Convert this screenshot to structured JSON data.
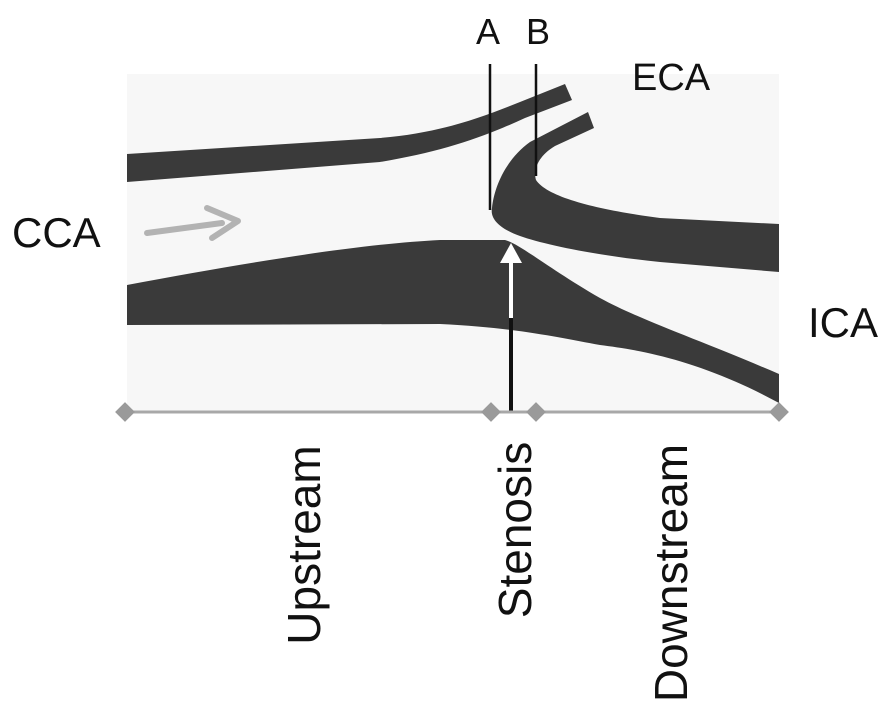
{
  "labels": {
    "line_a": "A",
    "line_b": "B",
    "eca": "ECA",
    "cca": "CCA",
    "ica": "ICA"
  },
  "regions": {
    "upstream": "Upstream",
    "stenosis": "Stenosis",
    "downstream": "Downstream"
  },
  "colors": {
    "vessel_wall": "#3a3a3a",
    "lumen_background": "#f7f7f7",
    "flow_arrow": "#b3b3b3",
    "axis": "#a8a8a8",
    "marker": "#9a9a9a"
  },
  "icons": {
    "flow_direction": "arrow-right-icon",
    "stenosis_pointer": "arrow-up-icon"
  }
}
